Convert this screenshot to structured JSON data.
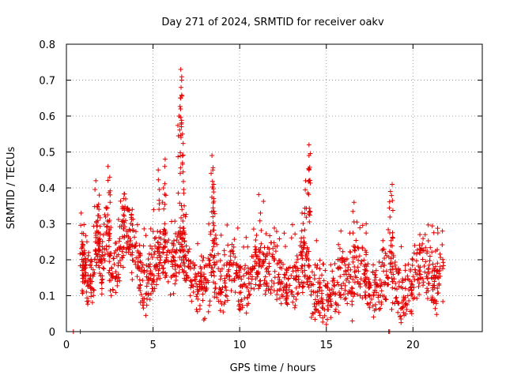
{
  "chart_data": {
    "type": "scatter",
    "title": "Day 271 of 2024, SRMTID for receiver oakv",
    "xlabel": "GPS time / hours",
    "ylabel": "SRMTID / TECUs",
    "xlim": [
      0,
      24
    ],
    "ylim": [
      0,
      0.8
    ],
    "grid": true,
    "x_ticks": [
      0,
      5,
      10,
      15,
      20
    ],
    "x_tick_labels": [
      "0",
      "5",
      "10",
      "15",
      "20"
    ],
    "y_ticks": [
      0,
      0.1,
      0.2,
      0.3,
      0.4,
      0.5,
      0.6,
      0.7,
      0.8
    ],
    "y_tick_labels": [
      "0",
      "0.1",
      "0.2",
      "0.3",
      "0.4",
      "0.5",
      "0.6",
      "0.7",
      "0.8"
    ],
    "marker": "plus",
    "marker_color": "#e00000",
    "series": [
      {
        "name": "SRMTID",
        "envelope": [
          {
            "x": 0.9,
            "y": 0.16
          },
          {
            "x": 1.0,
            "y": 0.22
          },
          {
            "x": 1.2,
            "y": 0.15
          },
          {
            "x": 1.5,
            "y": 0.12
          },
          {
            "x": 1.8,
            "y": 0.28
          },
          {
            "x": 2.0,
            "y": 0.16
          },
          {
            "x": 2.3,
            "y": 0.3
          },
          {
            "x": 2.6,
            "y": 0.15
          },
          {
            "x": 3.0,
            "y": 0.2
          },
          {
            "x": 3.3,
            "y": 0.28
          },
          {
            "x": 3.6,
            "y": 0.3
          },
          {
            "x": 4.0,
            "y": 0.22
          },
          {
            "x": 4.3,
            "y": 0.14
          },
          {
            "x": 4.7,
            "y": 0.12
          },
          {
            "x": 5.0,
            "y": 0.17
          },
          {
            "x": 5.3,
            "y": 0.19
          },
          {
            "x": 5.6,
            "y": 0.23
          },
          {
            "x": 6.0,
            "y": 0.18
          },
          {
            "x": 6.3,
            "y": 0.2
          },
          {
            "x": 6.6,
            "y": 0.22
          },
          {
            "x": 6.9,
            "y": 0.2
          },
          {
            "x": 7.3,
            "y": 0.14
          },
          {
            "x": 7.7,
            "y": 0.12
          },
          {
            "x": 8.0,
            "y": 0.1
          },
          {
            "x": 8.4,
            "y": 0.17
          },
          {
            "x": 8.8,
            "y": 0.12
          },
          {
            "x": 9.2,
            "y": 0.14
          },
          {
            "x": 9.6,
            "y": 0.18
          },
          {
            "x": 10.0,
            "y": 0.12
          },
          {
            "x": 10.4,
            "y": 0.13
          },
          {
            "x": 10.8,
            "y": 0.18
          },
          {
            "x": 11.1,
            "y": 0.2
          },
          {
            "x": 11.5,
            "y": 0.16
          },
          {
            "x": 11.9,
            "y": 0.19
          },
          {
            "x": 12.3,
            "y": 0.14
          },
          {
            "x": 12.7,
            "y": 0.13
          },
          {
            "x": 13.1,
            "y": 0.12
          },
          {
            "x": 13.5,
            "y": 0.15
          },
          {
            "x": 13.8,
            "y": 0.2
          },
          {
            "x": 14.2,
            "y": 0.1
          },
          {
            "x": 14.6,
            "y": 0.11
          },
          {
            "x": 15.0,
            "y": 0.07
          },
          {
            "x": 15.4,
            "y": 0.1
          },
          {
            "x": 15.8,
            "y": 0.15
          },
          {
            "x": 16.2,
            "y": 0.13
          },
          {
            "x": 16.6,
            "y": 0.16
          },
          {
            "x": 17.0,
            "y": 0.18
          },
          {
            "x": 17.4,
            "y": 0.12
          },
          {
            "x": 17.8,
            "y": 0.1
          },
          {
            "x": 18.2,
            "y": 0.14
          },
          {
            "x": 18.6,
            "y": 0.17
          },
          {
            "x": 19.0,
            "y": 0.12
          },
          {
            "x": 19.4,
            "y": 0.1
          },
          {
            "x": 19.8,
            "y": 0.11
          },
          {
            "x": 20.2,
            "y": 0.15
          },
          {
            "x": 20.6,
            "y": 0.18
          },
          {
            "x": 21.0,
            "y": 0.17
          },
          {
            "x": 21.3,
            "y": 0.12
          },
          {
            "x": 21.6,
            "y": 0.18
          }
        ],
        "peaks": [
          {
            "x": 0.8,
            "y": 0.0
          },
          {
            "x": 0.4,
            "y": 0.0
          },
          {
            "x": 0.85,
            "y": 0.33
          },
          {
            "x": 1.7,
            "y": 0.42
          },
          {
            "x": 1.9,
            "y": 0.38
          },
          {
            "x": 2.4,
            "y": 0.46
          },
          {
            "x": 2.5,
            "y": 0.43
          },
          {
            "x": 3.3,
            "y": 0.37
          },
          {
            "x": 3.8,
            "y": 0.34
          },
          {
            "x": 5.3,
            "y": 0.45
          },
          {
            "x": 5.7,
            "y": 0.48
          },
          {
            "x": 5.6,
            "y": 0.4
          },
          {
            "x": 6.5,
            "y": 0.6
          },
          {
            "x": 6.6,
            "y": 0.73
          },
          {
            "x": 6.65,
            "y": 0.7
          },
          {
            "x": 6.6,
            "y": 0.65
          },
          {
            "x": 6.7,
            "y": 0.55
          },
          {
            "x": 6.7,
            "y": 0.47
          },
          {
            "x": 6.8,
            "y": 0.35
          },
          {
            "x": 8.4,
            "y": 0.49
          },
          {
            "x": 8.45,
            "y": 0.45
          },
          {
            "x": 8.5,
            "y": 0.41
          },
          {
            "x": 8.5,
            "y": 0.37
          },
          {
            "x": 11.2,
            "y": 0.33
          },
          {
            "x": 13.6,
            "y": 0.33
          },
          {
            "x": 13.8,
            "y": 0.42
          },
          {
            "x": 14.0,
            "y": 0.52
          },
          {
            "x": 14.0,
            "y": 0.49
          },
          {
            "x": 14.0,
            "y": 0.45
          },
          {
            "x": 16.6,
            "y": 0.36
          },
          {
            "x": 17.3,
            "y": 0.3
          },
          {
            "x": 18.8,
            "y": 0.41
          },
          {
            "x": 18.7,
            "y": 0.39
          },
          {
            "x": 18.6,
            "y": 0.0
          },
          {
            "x": 18.65,
            "y": 0.0
          },
          {
            "x": 20.4,
            "y": 0.27
          },
          {
            "x": 21.7,
            "y": 0.28
          },
          {
            "x": 15.0,
            "y": 0.02
          },
          {
            "x": 16.5,
            "y": 0.03
          }
        ]
      }
    ]
  }
}
